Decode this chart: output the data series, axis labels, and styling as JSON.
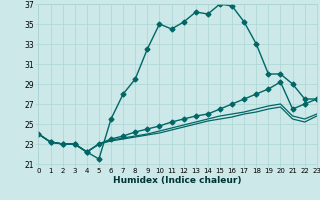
{
  "xlabel": "Humidex (Indice chaleur)",
  "xlim": [
    0,
    23
  ],
  "ylim": [
    21,
    37
  ],
  "yticks": [
    21,
    23,
    25,
    27,
    29,
    31,
    33,
    35,
    37
  ],
  "xticks": [
    0,
    1,
    2,
    3,
    4,
    5,
    6,
    7,
    8,
    9,
    10,
    11,
    12,
    13,
    14,
    15,
    16,
    17,
    18,
    19,
    20,
    21,
    22,
    23
  ],
  "bg_color": "#cce8e8",
  "grid_color": "#aad4d4",
  "line_color": "#006666",
  "lines": [
    {
      "x": [
        0,
        1,
        2,
        3,
        4,
        5,
        6,
        7,
        8,
        9,
        10,
        11,
        12,
        13,
        14,
        15,
        16,
        17,
        18,
        19,
        20,
        21,
        22,
        23
      ],
      "y": [
        24.0,
        23.2,
        23.0,
        23.0,
        22.2,
        21.5,
        25.5,
        28.0,
        29.5,
        32.5,
        35.0,
        34.5,
        35.2,
        36.2,
        36.0,
        37.0,
        36.8,
        35.2,
        33.0,
        30.0,
        30.0,
        29.0,
        27.5,
        27.5
      ],
      "marker": "D",
      "markersize": 2.5,
      "lw": 1.0
    },
    {
      "x": [
        0,
        1,
        2,
        3,
        4,
        5,
        6,
        7,
        8,
        9,
        10,
        11,
        12,
        13,
        14,
        15,
        16,
        17,
        18,
        19,
        20,
        21,
        22,
        23
      ],
      "y": [
        24.0,
        23.2,
        23.0,
        23.0,
        22.2,
        23.0,
        23.5,
        23.8,
        24.2,
        24.5,
        24.8,
        25.2,
        25.5,
        25.8,
        26.0,
        26.5,
        27.0,
        27.5,
        28.0,
        28.5,
        29.2,
        26.5,
        27.0,
        27.5
      ],
      "marker": "D",
      "markersize": 2.5,
      "lw": 1.0
    },
    {
      "x": [
        0,
        1,
        2,
        3,
        4,
        5,
        6,
        7,
        8,
        9,
        10,
        11,
        12,
        13,
        14,
        15,
        16,
        17,
        18,
        19,
        20,
        21,
        22,
        23
      ],
      "y": [
        24.0,
        23.2,
        23.0,
        23.0,
        22.2,
        23.0,
        23.4,
        23.6,
        23.8,
        24.0,
        24.3,
        24.6,
        24.9,
        25.2,
        25.5,
        25.8,
        26.0,
        26.2,
        26.5,
        26.8,
        27.0,
        25.8,
        25.5,
        26.0
      ],
      "marker": null,
      "markersize": 0,
      "lw": 0.9
    },
    {
      "x": [
        0,
        1,
        2,
        3,
        4,
        5,
        6,
        7,
        8,
        9,
        10,
        11,
        12,
        13,
        14,
        15,
        16,
        17,
        18,
        19,
        20,
        21,
        22,
        23
      ],
      "y": [
        24.0,
        23.2,
        23.0,
        23.0,
        22.2,
        23.0,
        23.3,
        23.5,
        23.7,
        23.9,
        24.1,
        24.4,
        24.7,
        25.0,
        25.3,
        25.5,
        25.7,
        26.0,
        26.2,
        26.5,
        26.7,
        25.5,
        25.2,
        25.8
      ],
      "marker": null,
      "markersize": 0,
      "lw": 0.9
    }
  ]
}
